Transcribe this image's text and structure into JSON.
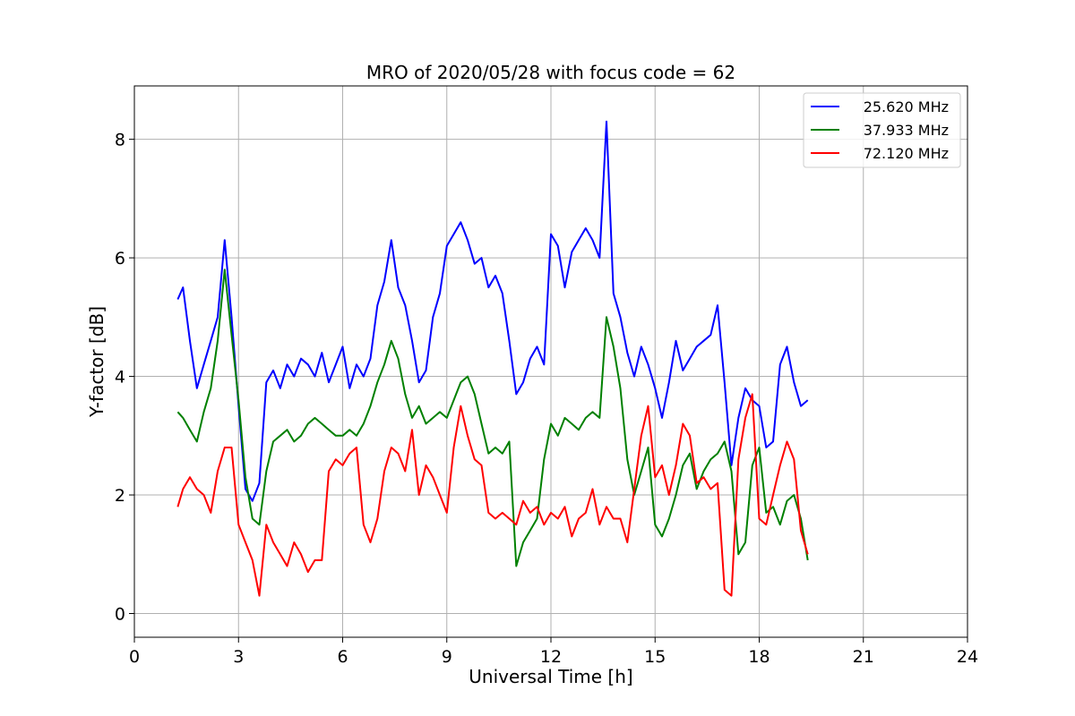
{
  "chart_data": {
    "type": "line",
    "title": "MRO of 2020/05/28 with focus code = 62",
    "xlabel": "Universal Time [h]",
    "ylabel": "Y-factor [dB]",
    "xlim": [
      0,
      24
    ],
    "ylim": [
      -0.4,
      8.9
    ],
    "xticks": [
      0,
      3,
      6,
      9,
      12,
      15,
      18,
      21,
      24
    ],
    "yticks": [
      0,
      2,
      4,
      6,
      8
    ],
    "grid": true,
    "legend_position": "top-right",
    "series": [
      {
        "name": "25.620 MHz",
        "color": "#0000ff",
        "x": [
          1.25,
          1.4,
          1.6,
          1.8,
          2.0,
          2.2,
          2.4,
          2.6,
          2.8,
          3.0,
          3.2,
          3.4,
          3.6,
          3.8,
          4.0,
          4.2,
          4.4,
          4.6,
          4.8,
          5.0,
          5.2,
          5.4,
          5.6,
          5.8,
          6.0,
          6.2,
          6.4,
          6.6,
          6.8,
          7.0,
          7.2,
          7.4,
          7.6,
          7.8,
          8.0,
          8.2,
          8.4,
          8.6,
          8.8,
          9.0,
          9.2,
          9.4,
          9.6,
          9.8,
          10.0,
          10.2,
          10.4,
          10.6,
          10.8,
          11.0,
          11.2,
          11.4,
          11.6,
          11.8,
          12.0,
          12.2,
          12.4,
          12.6,
          12.8,
          13.0,
          13.2,
          13.4,
          13.6,
          13.8,
          14.0,
          14.2,
          14.4,
          14.6,
          14.8,
          15.0,
          15.2,
          15.4,
          15.6,
          15.8,
          16.0,
          16.2,
          16.4,
          16.6,
          16.8,
          17.0,
          17.2,
          17.4,
          17.6,
          17.8,
          18.0,
          18.2,
          18.4,
          18.6,
          18.8,
          19.0,
          19.2,
          19.4
        ],
        "y": [
          5.3,
          5.5,
          4.6,
          3.8,
          4.2,
          4.6,
          5.0,
          6.3,
          5.0,
          3.5,
          2.1,
          1.9,
          2.2,
          3.9,
          4.1,
          3.8,
          4.2,
          4.0,
          4.3,
          4.2,
          4.0,
          4.4,
          3.9,
          4.2,
          4.5,
          3.8,
          4.2,
          4.0,
          4.3,
          5.2,
          5.6,
          6.3,
          5.5,
          5.2,
          4.6,
          3.9,
          4.1,
          5.0,
          5.4,
          6.2,
          6.4,
          6.6,
          6.3,
          5.9,
          6.0,
          5.5,
          5.7,
          5.4,
          4.6,
          3.7,
          3.9,
          4.3,
          4.5,
          4.2,
          6.4,
          6.2,
          5.5,
          6.1,
          6.3,
          6.5,
          6.3,
          6.0,
          8.3,
          5.4,
          5.0,
          4.4,
          4.0,
          4.5,
          4.2,
          3.8,
          3.3,
          3.9,
          4.6,
          4.1,
          4.3,
          4.5,
          4.6,
          4.7,
          5.2,
          3.9,
          2.5,
          3.3,
          3.8,
          3.6,
          3.5,
          2.8,
          2.9,
          4.2,
          4.5,
          3.9,
          3.5,
          3.6
        ]
      },
      {
        "name": "37.933 MHz",
        "color": "#008000",
        "x": [
          1.25,
          1.4,
          1.6,
          1.8,
          2.0,
          2.2,
          2.4,
          2.6,
          2.8,
          3.0,
          3.2,
          3.4,
          3.6,
          3.8,
          4.0,
          4.2,
          4.4,
          4.6,
          4.8,
          5.0,
          5.2,
          5.4,
          5.6,
          5.8,
          6.0,
          6.2,
          6.4,
          6.6,
          6.8,
          7.0,
          7.2,
          7.4,
          7.6,
          7.8,
          8.0,
          8.2,
          8.4,
          8.6,
          8.8,
          9.0,
          9.2,
          9.4,
          9.6,
          9.8,
          10.0,
          10.2,
          10.4,
          10.6,
          10.8,
          11.0,
          11.2,
          11.4,
          11.6,
          11.8,
          12.0,
          12.2,
          12.4,
          12.6,
          12.8,
          13.0,
          13.2,
          13.4,
          13.6,
          13.8,
          14.0,
          14.2,
          14.4,
          14.6,
          14.8,
          15.0,
          15.2,
          15.4,
          15.6,
          15.8,
          16.0,
          16.2,
          16.4,
          16.6,
          16.8,
          17.0,
          17.2,
          17.4,
          17.6,
          17.8,
          18.0,
          18.2,
          18.4,
          18.6,
          18.8,
          19.0,
          19.2,
          19.4
        ],
        "y": [
          3.4,
          3.3,
          3.1,
          2.9,
          3.4,
          3.8,
          4.6,
          5.8,
          4.7,
          3.6,
          2.3,
          1.6,
          1.5,
          2.4,
          2.9,
          3.0,
          3.1,
          2.9,
          3.0,
          3.2,
          3.3,
          3.2,
          3.1,
          3.0,
          3.0,
          3.1,
          3.0,
          3.2,
          3.5,
          3.9,
          4.2,
          4.6,
          4.3,
          3.7,
          3.3,
          3.5,
          3.2,
          3.3,
          3.4,
          3.3,
          3.6,
          3.9,
          4.0,
          3.7,
          3.2,
          2.7,
          2.8,
          2.7,
          2.9,
          0.8,
          1.2,
          1.4,
          1.6,
          2.6,
          3.2,
          3.0,
          3.3,
          3.2,
          3.1,
          3.3,
          3.4,
          3.3,
          5.0,
          4.5,
          3.8,
          2.6,
          2.0,
          2.4,
          2.8,
          1.5,
          1.3,
          1.6,
          2.0,
          2.5,
          2.7,
          2.1,
          2.4,
          2.6,
          2.7,
          2.9,
          2.4,
          1.0,
          1.2,
          2.5,
          2.8,
          1.7,
          1.8,
          1.5,
          1.9,
          2.0,
          1.6,
          0.9
        ]
      },
      {
        "name": "72.120 MHz",
        "color": "#ff0000",
        "x": [
          1.25,
          1.4,
          1.6,
          1.8,
          2.0,
          2.2,
          2.4,
          2.6,
          2.8,
          3.0,
          3.2,
          3.4,
          3.6,
          3.8,
          4.0,
          4.2,
          4.4,
          4.6,
          4.8,
          5.0,
          5.2,
          5.4,
          5.6,
          5.8,
          6.0,
          6.2,
          6.4,
          6.6,
          6.8,
          7.0,
          7.2,
          7.4,
          7.6,
          7.8,
          8.0,
          8.2,
          8.4,
          8.6,
          8.8,
          9.0,
          9.2,
          9.4,
          9.6,
          9.8,
          10.0,
          10.2,
          10.4,
          10.6,
          10.8,
          11.0,
          11.2,
          11.4,
          11.6,
          11.8,
          12.0,
          12.2,
          12.4,
          12.6,
          12.8,
          13.0,
          13.2,
          13.4,
          13.6,
          13.8,
          14.0,
          14.2,
          14.4,
          14.6,
          14.8,
          15.0,
          15.2,
          15.4,
          15.6,
          15.8,
          16.0,
          16.2,
          16.4,
          16.6,
          16.8,
          17.0,
          17.2,
          17.4,
          17.6,
          17.8,
          18.0,
          18.2,
          18.4,
          18.6,
          18.8,
          19.0,
          19.2,
          19.4
        ],
        "y": [
          1.8,
          2.1,
          2.3,
          2.1,
          2.0,
          1.7,
          2.4,
          2.8,
          2.8,
          1.5,
          1.2,
          0.9,
          0.3,
          1.5,
          1.2,
          1.0,
          0.8,
          1.2,
          1.0,
          0.7,
          0.9,
          0.9,
          2.4,
          2.6,
          2.5,
          2.7,
          2.8,
          1.5,
          1.2,
          1.6,
          2.4,
          2.8,
          2.7,
          2.4,
          3.1,
          2.0,
          2.5,
          2.3,
          2.0,
          1.7,
          2.8,
          3.5,
          3.0,
          2.6,
          2.5,
          1.7,
          1.6,
          1.7,
          1.6,
          1.5,
          1.9,
          1.7,
          1.8,
          1.5,
          1.7,
          1.6,
          1.8,
          1.3,
          1.6,
          1.7,
          2.1,
          1.5,
          1.8,
          1.6,
          1.6,
          1.2,
          2.1,
          3.0,
          3.5,
          2.3,
          2.5,
          2.0,
          2.5,
          3.2,
          3.0,
          2.2,
          2.3,
          2.1,
          2.2,
          0.4,
          0.3,
          2.6,
          3.3,
          3.7,
          1.6,
          1.5,
          2.0,
          2.5,
          2.9,
          2.6,
          1.4,
          1.0
        ]
      }
    ]
  }
}
